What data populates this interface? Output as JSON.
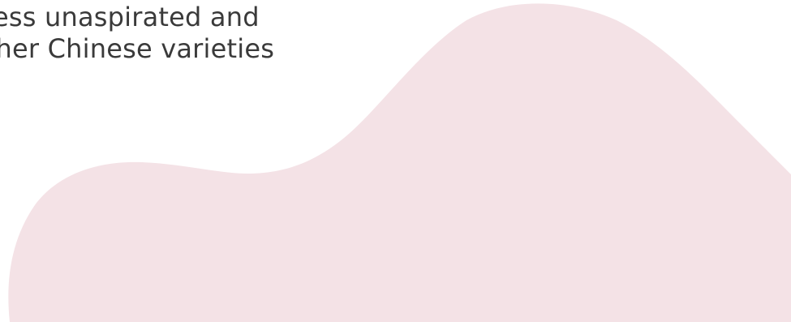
{
  "body_text": {
    "lines": [
      "eless unaspirated and",
      "other Chinese varieties"
    ]
  },
  "colors": {
    "background": "#ffffff",
    "blob": "#f4e2e6",
    "text": "#3a3a3a"
  }
}
